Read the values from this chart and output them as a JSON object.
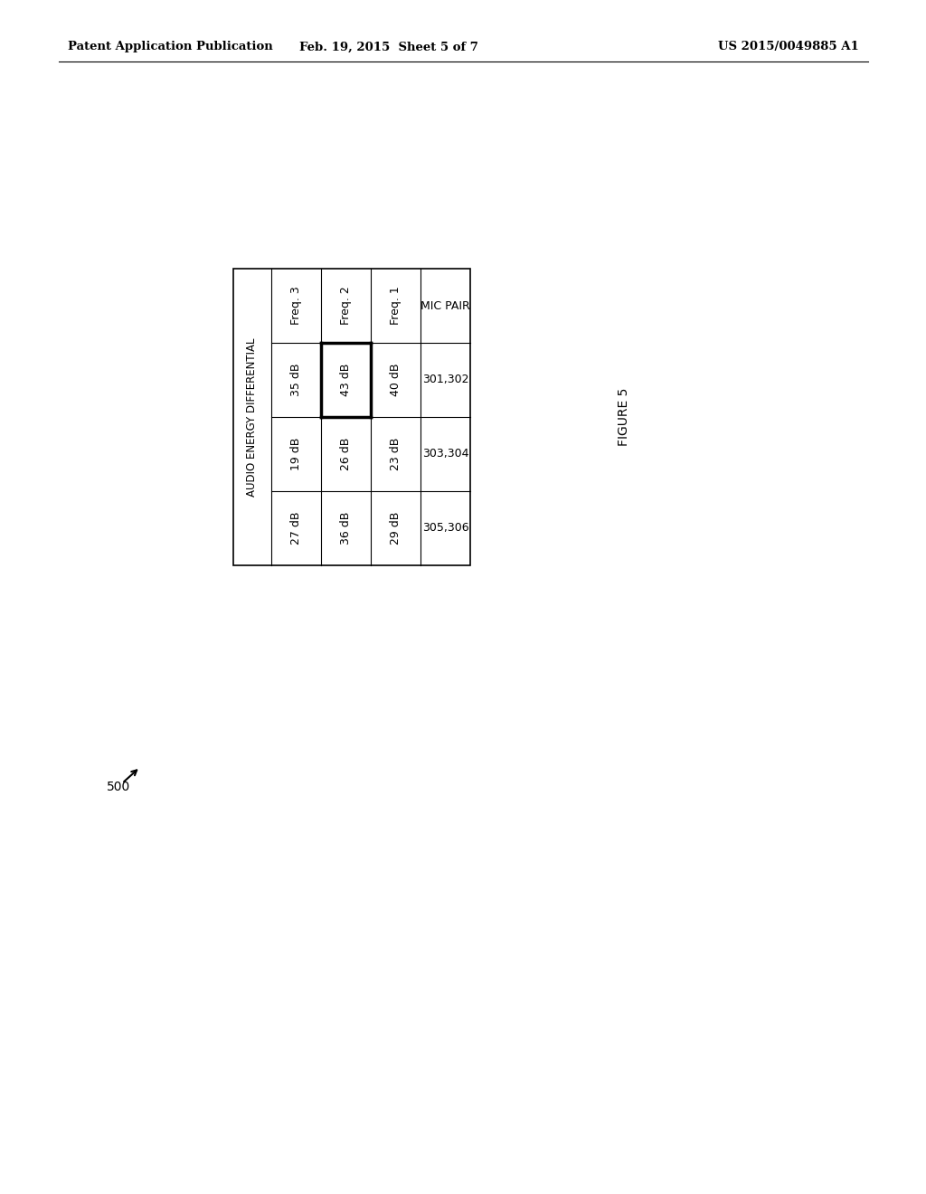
{
  "header_left": "Patent Application Publication",
  "header_center": "Feb. 19, 2015  Sheet 5 of 7",
  "header_right": "US 2015/0049885 A1",
  "figure_label": "FIGURE 5",
  "figure_number": "500",
  "table": {
    "row_header": "AUDIO ENERGY DIFFERENTIAL",
    "col_headers": [
      "Freq. 3",
      "Freq. 2",
      "Freq. 1",
      "MIC PAIR"
    ],
    "rows": [
      [
        "35 dB",
        "43 dB",
        "40 dB",
        "301,302"
      ],
      [
        "19 dB",
        "26 dB",
        "23 dB",
        "303,304"
      ],
      [
        "27 dB",
        "36 dB",
        "29 dB",
        "305,306"
      ]
    ],
    "highlight_row": 0,
    "highlight_col": 1
  },
  "background_color": "#ffffff",
  "text_color": "#000000",
  "line_color": "#000000"
}
